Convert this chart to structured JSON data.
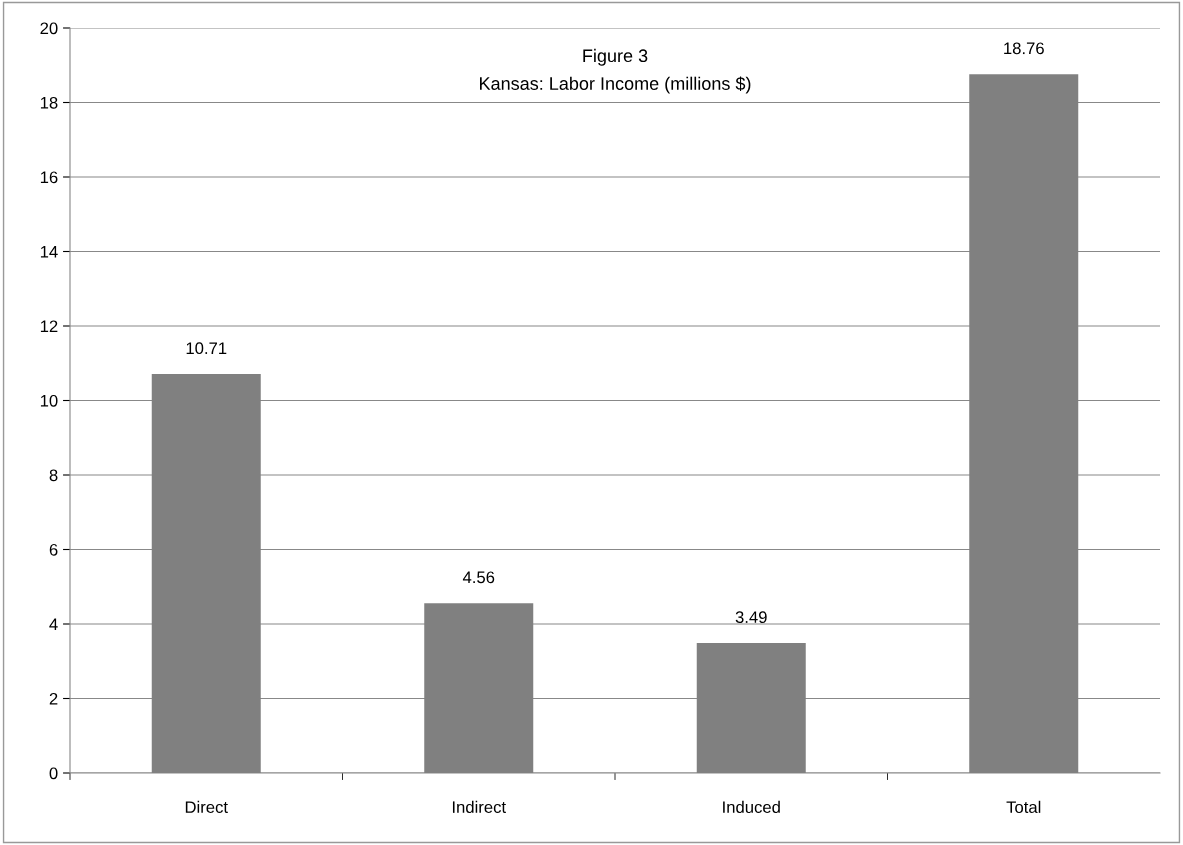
{
  "chart_data": {
    "type": "bar",
    "title": "Figure 3",
    "subtitle": "Kansas: Labor Income (millions $)",
    "categories": [
      "Direct",
      "Indirect",
      "Induced",
      "Total"
    ],
    "values": [
      10.71,
      4.56,
      3.49,
      18.76
    ],
    "color": "#808080",
    "ylim": [
      0,
      20
    ],
    "yticks": [
      0,
      2,
      4,
      6,
      8,
      10,
      12,
      14,
      16,
      18,
      20
    ],
    "grid": "y",
    "data_labels": true
  }
}
